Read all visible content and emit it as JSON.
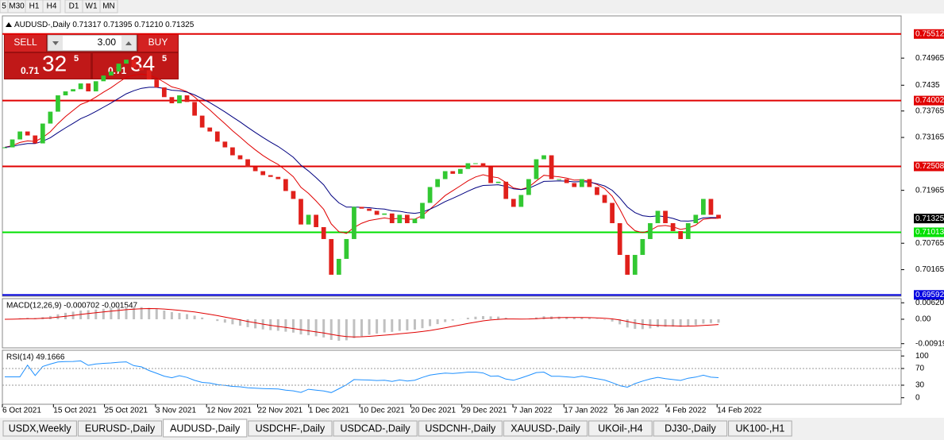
{
  "toolbar": {
    "timeframes": [
      "5",
      "M30",
      "H1",
      "H4",
      "D1",
      "W1",
      "MN"
    ]
  },
  "header": {
    "symbol": "AUDUSD-,Daily",
    "ohlc": "0.71317 0.71395 0.71210 0.71325"
  },
  "trade_panel": {
    "sell": "SELL",
    "buy": "BUY",
    "lots": "3.00",
    "sell_price": {
      "big": "0.71",
      "mid": "32",
      "sup": "5"
    },
    "buy_price": {
      "big": "0.71",
      "mid": "34",
      "sup": "5"
    }
  },
  "chart_data": {
    "type": "candlestick",
    "closes": [
      0.7294,
      0.7312,
      0.733,
      0.7321,
      0.7303,
      0.7348,
      0.7375,
      0.7412,
      0.7421,
      0.7426,
      0.7439,
      0.7421,
      0.7444,
      0.7457,
      0.7466,
      0.7484,
      0.7493,
      0.7475,
      0.7469,
      0.7448,
      0.743,
      0.7408,
      0.7394,
      0.7412,
      0.7397,
      0.7366,
      0.7339,
      0.733,
      0.7307,
      0.7294,
      0.7276,
      0.7267,
      0.7249,
      0.724,
      0.7231,
      0.7227,
      0.7222,
      0.7195,
      0.7177,
      0.7119,
      0.7141,
      0.7113,
      0.7086,
      0.7005,
      0.7041,
      0.7086,
      0.7159,
      0.7155,
      0.715,
      0.7141,
      0.7144,
      0.7122,
      0.7141,
      0.7122,
      0.7132,
      0.7168,
      0.7204,
      0.7222,
      0.724,
      0.7234,
      0.7245,
      0.7258,
      0.7258,
      0.7249,
      0.7213,
      0.7216,
      0.7177,
      0.7159,
      0.7186,
      0.7222,
      0.7267,
      0.7276,
      0.7222,
      0.7222,
      0.7213,
      0.7204,
      0.7222,
      0.7204,
      0.7186,
      0.7168,
      0.7122,
      0.705,
      0.7005,
      0.705,
      0.7086,
      0.7122,
      0.715,
      0.7122,
      0.7104,
      0.7086,
      0.7122,
      0.7141,
      0.7177,
      0.7141,
      0.71325
    ],
    "up_color": "#32c832",
    "down_color": "#e0201b",
    "ylim": [
      0.69562,
      0.75923
    ],
    "yticks": [
      0.74965,
      0.7435,
      0.73765,
      0.73165,
      0.71965,
      0.70765,
      0.70165
    ],
    "levels": [
      {
        "value": 0.75512,
        "color": "#e00000"
      },
      {
        "value": 0.74002,
        "color": "#e00000"
      },
      {
        "value": 0.72508,
        "color": "#e00000"
      },
      {
        "value": 0.71013,
        "color": "#00e000"
      },
      {
        "value": 0.69592,
        "color": "#0000e0"
      }
    ],
    "last": 0.71325,
    "x_labels": [
      "6 Oct 2021",
      "15 Oct 2021",
      "25 Oct 2021",
      "3 Nov 2021",
      "12 Nov 2021",
      "22 Nov 2021",
      "1 Dec 2021",
      "10 Dec 2021",
      "20 Dec 2021",
      "29 Dec 2021",
      "7 Jan 2022",
      "17 Jan 2022",
      "26 Jan 2022",
      "4 Feb 2022",
      "14 Feb 2022"
    ]
  },
  "macd": {
    "label": "MACD(12,26,9) -0.000702 -0.001547",
    "ylim": [
      -0.01077,
      0.00776
    ],
    "yticks": [
      0.006201,
      {
        "value": 0,
        "label": "0.00"
      },
      -0.00919
    ]
  },
  "rsi": {
    "label": "RSI(14) 49.1666",
    "ylim": [
      -15.7,
      113.7
    ],
    "yticks": [
      100,
      70,
      30,
      0
    ]
  },
  "tabs": [
    "USDX,Weekly",
    "EURUSD-,Daily",
    "AUDUSD-,Daily",
    "USDCHF-,Daily",
    "USDCAD-,Daily",
    "USDCNH-,Daily",
    "XAUUSD-,Daily",
    "UKOil-,H4",
    "DJ30-,Daily",
    "UK100-,H1"
  ],
  "active_tab": "AUDUSD-,Daily"
}
